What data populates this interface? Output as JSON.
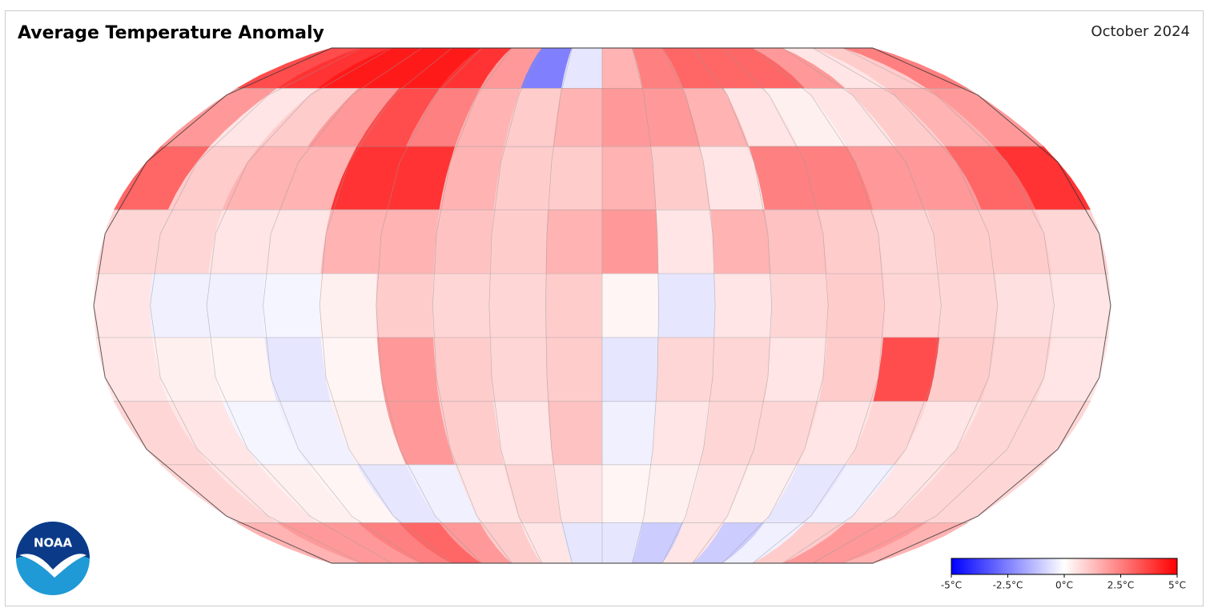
{
  "title": "Average Temperature Anomaly",
  "date": "October 2024",
  "logo": "NOAA",
  "legend": {
    "range": [
      -5,
      5
    ],
    "colors": [
      "#0000ff",
      "#ffffff",
      "#ff0000"
    ],
    "ticks": [
      {
        "value": -5,
        "label": "-5°C"
      },
      {
        "value": -2.5,
        "label": "-2.5°C"
      },
      {
        "value": 0,
        "label": "0°C"
      },
      {
        "value": 2.5,
        "label": "2.5°C"
      },
      {
        "value": 5,
        "label": "5°C"
      }
    ]
  },
  "anomaly": {
    "values": [
      [
        3.5,
        4,
        4.5,
        4.5,
        4.5,
        4,
        2,
        -2.5,
        -0.5,
        1.5,
        2.5,
        3,
        3,
        3,
        2,
        0.5,
        1,
        2.5
      ],
      [
        2,
        0.5,
        1,
        2,
        3.5,
        2.5,
        1.5,
        1,
        1.5,
        2,
        2,
        1.5,
        0.5,
        0.3,
        0.5,
        1,
        1.5,
        2
      ],
      [
        3,
        1,
        1.5,
        1.5,
        4,
        4,
        1.5,
        1,
        1,
        1.5,
        1,
        0.5,
        2.5,
        2.5,
        2,
        2,
        3,
        4
      ],
      [
        0.8,
        0.8,
        0.5,
        0.5,
        1.5,
        1.5,
        1.2,
        1,
        1.5,
        2,
        0.5,
        1.5,
        1.2,
        1,
        0.8,
        1,
        1,
        0.8
      ],
      [
        0.5,
        -0.3,
        -0.3,
        -0.2,
        0.3,
        1,
        0.8,
        0.8,
        1,
        0.2,
        -0.5,
        0.5,
        0.8,
        1,
        0.8,
        0.8,
        0.6,
        0.5
      ],
      [
        0.5,
        0.3,
        0.2,
        -0.5,
        0.2,
        2,
        1,
        0.8,
        1,
        -0.5,
        0.8,
        0.8,
        0.5,
        1,
        3.5,
        1,
        0.8,
        0.5
      ],
      [
        0.8,
        0.5,
        -0.2,
        -0.3,
        0.3,
        2,
        1,
        0.5,
        1.2,
        -0.3,
        0.5,
        0.8,
        0.8,
        0.5,
        0.8,
        0.5,
        0.8,
        0.8
      ],
      [
        0.8,
        0.5,
        0.3,
        0.2,
        -0.5,
        -0.3,
        0.5,
        0.8,
        0.5,
        0.2,
        0.3,
        0.5,
        0.3,
        -0.5,
        -0.3,
        0.5,
        0.8,
        0.8
      ],
      [
        1.5,
        2,
        2,
        2.5,
        3,
        2,
        1,
        0.5,
        -0.5,
        -0.5,
        -1,
        0.5,
        -1,
        -0.3,
        1,
        2,
        2,
        1.5
      ]
    ]
  }
}
